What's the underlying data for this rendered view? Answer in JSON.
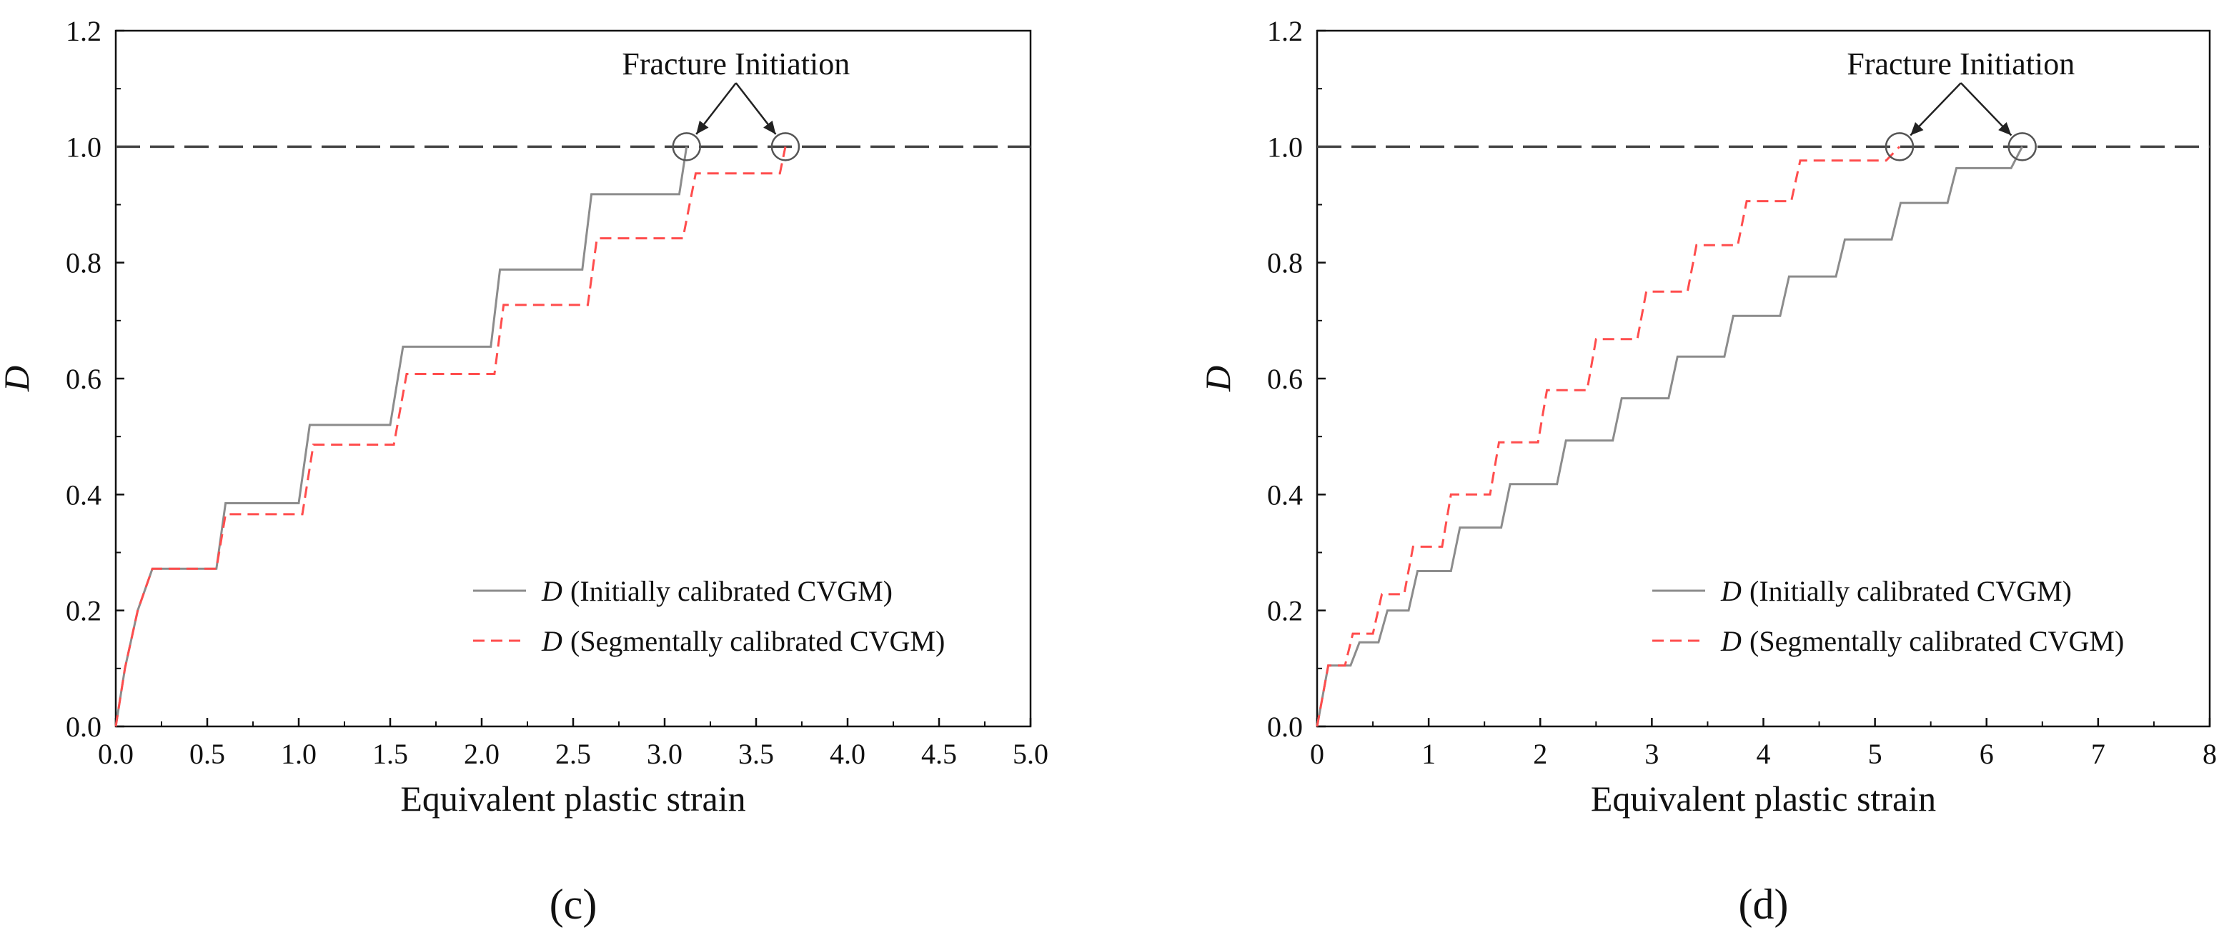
{
  "chart_data": [
    {
      "type": "line",
      "panel_label": "(c)",
      "xlabel": "Equivalent plastic strain",
      "ylabel": "D",
      "xlim": [
        0,
        5.0
      ],
      "ylim": [
        0,
        1.2
      ],
      "xticks": [
        "0.0",
        "0.5",
        "1.0",
        "1.5",
        "2.0",
        "2.5",
        "3.0",
        "3.5",
        "4.0",
        "4.5",
        "5.0"
      ],
      "yticks": [
        "0.0",
        "0.2",
        "0.4",
        "0.6",
        "0.8",
        "1.0",
        "1.2"
      ],
      "reference_line": {
        "y": 1.0,
        "style": "dashed",
        "color": "#444444"
      },
      "annotation": {
        "text": "Fracture Initiation",
        "targets": [
          [
            3.12,
            1.0
          ],
          [
            3.66,
            1.0
          ]
        ]
      },
      "legend_position": "lower-right",
      "series": [
        {
          "name": "Initially calibrated CVGM",
          "legend_symbol": "D",
          "legend_text": "(Initially calibrated CVGM)",
          "color": "#8c8c8c",
          "style": "solid",
          "points": [
            [
              0,
              0
            ],
            [
              0.05,
              0.1
            ],
            [
              0.12,
              0.2
            ],
            [
              0.2,
              0.272
            ],
            [
              0.55,
              0.272
            ],
            [
              0.6,
              0.385
            ],
            [
              1.0,
              0.385
            ],
            [
              1.06,
              0.52
            ],
            [
              1.5,
              0.52
            ],
            [
              1.57,
              0.655
            ],
            [
              2.05,
              0.655
            ],
            [
              2.1,
              0.788
            ],
            [
              2.55,
              0.788
            ],
            [
              2.6,
              0.918
            ],
            [
              3.08,
              0.918
            ],
            [
              3.12,
              1.0
            ]
          ]
        },
        {
          "name": "Segmentally calibrated CVGM",
          "legend_symbol": "D",
          "legend_text": "(Segmentally calibrated CVGM)",
          "color": "#ff4d4d",
          "style": "dashed",
          "points": [
            [
              0,
              0
            ],
            [
              0.05,
              0.1
            ],
            [
              0.12,
              0.2
            ],
            [
              0.2,
              0.272
            ],
            [
              0.55,
              0.272
            ],
            [
              0.6,
              0.366
            ],
            [
              1.02,
              0.366
            ],
            [
              1.08,
              0.486
            ],
            [
              1.52,
              0.486
            ],
            [
              1.59,
              0.608
            ],
            [
              2.07,
              0.608
            ],
            [
              2.12,
              0.727
            ],
            [
              2.58,
              0.727
            ],
            [
              2.63,
              0.842
            ],
            [
              3.1,
              0.842
            ],
            [
              3.17,
              0.954
            ],
            [
              3.63,
              0.954
            ],
            [
              3.66,
              1.0
            ]
          ]
        }
      ]
    },
    {
      "type": "line",
      "panel_label": "(d)",
      "xlabel": "Equivalent plastic strain",
      "ylabel": "D",
      "xlim": [
        0,
        8
      ],
      "ylim": [
        0,
        1.2
      ],
      "xticks": [
        "0",
        "1",
        "2",
        "3",
        "4",
        "5",
        "6",
        "7",
        "8"
      ],
      "yticks": [
        "0.0",
        "0.2",
        "0.4",
        "0.6",
        "0.8",
        "1.0",
        "1.2"
      ],
      "reference_line": {
        "y": 1.0,
        "style": "dashed",
        "color": "#444444"
      },
      "annotation": {
        "text": "Fracture Initiation",
        "targets": [
          [
            5.22,
            1.0
          ],
          [
            6.32,
            1.0
          ]
        ]
      },
      "legend_position": "lower-right",
      "series": [
        {
          "name": "Initially calibrated CVGM",
          "legend_symbol": "D",
          "legend_text": "(Initially calibrated CVGM)",
          "color": "#8c8c8c",
          "style": "solid",
          "points": [
            [
              0,
              0
            ],
            [
              0.1,
              0.105
            ],
            [
              0.3,
              0.105
            ],
            [
              0.38,
              0.145
            ],
            [
              0.55,
              0.145
            ],
            [
              0.63,
              0.2
            ],
            [
              0.82,
              0.2
            ],
            [
              0.9,
              0.268
            ],
            [
              1.2,
              0.268
            ],
            [
              1.28,
              0.343
            ],
            [
              1.65,
              0.343
            ],
            [
              1.73,
              0.418
            ],
            [
              2.15,
              0.418
            ],
            [
              2.23,
              0.493
            ],
            [
              2.65,
              0.493
            ],
            [
              2.73,
              0.566
            ],
            [
              3.15,
              0.566
            ],
            [
              3.23,
              0.638
            ],
            [
              3.65,
              0.638
            ],
            [
              3.73,
              0.708
            ],
            [
              4.15,
              0.708
            ],
            [
              4.23,
              0.776
            ],
            [
              4.65,
              0.776
            ],
            [
              4.73,
              0.84
            ],
            [
              5.15,
              0.84
            ],
            [
              5.23,
              0.903
            ],
            [
              5.65,
              0.903
            ],
            [
              5.73,
              0.963
            ],
            [
              6.22,
              0.963
            ],
            [
              6.32,
              1.0
            ]
          ]
        },
        {
          "name": "Segmentally calibrated CVGM",
          "legend_symbol": "D",
          "legend_text": "(Segmentally calibrated CVGM)",
          "color": "#ff4d4d",
          "style": "dashed",
          "points": [
            [
              0,
              0
            ],
            [
              0.1,
              0.105
            ],
            [
              0.25,
              0.105
            ],
            [
              0.32,
              0.16
            ],
            [
              0.5,
              0.16
            ],
            [
              0.58,
              0.228
            ],
            [
              0.78,
              0.228
            ],
            [
              0.86,
              0.31
            ],
            [
              1.12,
              0.31
            ],
            [
              1.2,
              0.4
            ],
            [
              1.55,
              0.4
            ],
            [
              1.63,
              0.49
            ],
            [
              1.98,
              0.49
            ],
            [
              2.06,
              0.58
            ],
            [
              2.42,
              0.58
            ],
            [
              2.5,
              0.668
            ],
            [
              2.87,
              0.668
            ],
            [
              2.95,
              0.75
            ],
            [
              3.32,
              0.75
            ],
            [
              3.4,
              0.83
            ],
            [
              3.77,
              0.83
            ],
            [
              3.85,
              0.906
            ],
            [
              4.25,
              0.906
            ],
            [
              4.33,
              0.976
            ],
            [
              5.1,
              0.976
            ],
            [
              5.22,
              1.0
            ]
          ]
        }
      ]
    }
  ]
}
